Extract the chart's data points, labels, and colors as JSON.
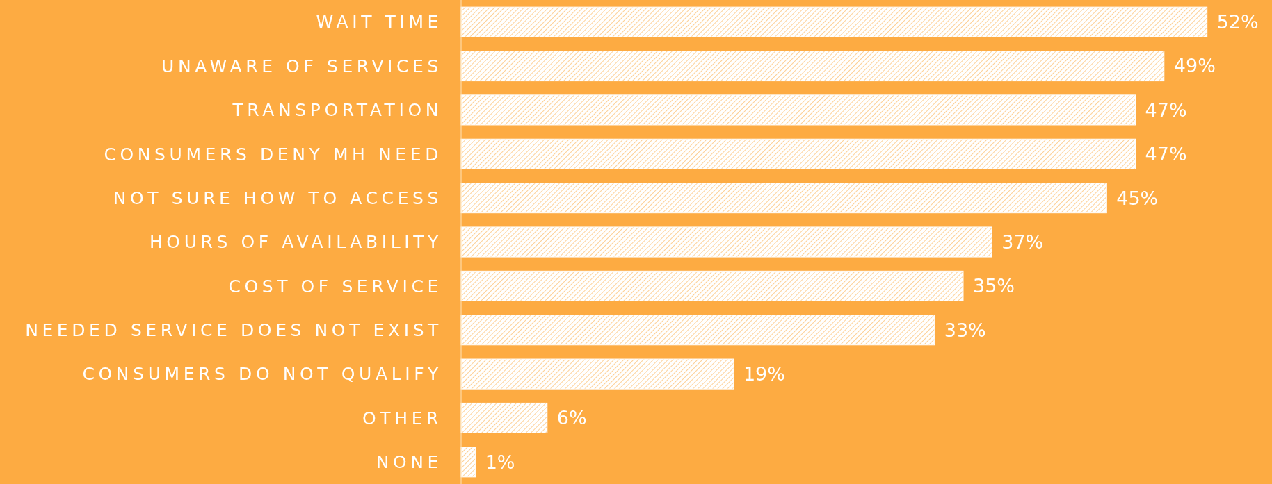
{
  "chart_data": {
    "type": "bar",
    "orientation": "horizontal",
    "categories": [
      "WAIT TIME",
      "UNAWARE OF SERVICES",
      "TRANSPORTATION",
      "CONSUMERS DENY MH NEED",
      "NOT SURE HOW TO ACCESS",
      "HOURS OF AVAILABILITY",
      "COST OF SERVICE",
      "NEEDED SERVICE DOES NOT EXIST",
      "CONSUMERS DO NOT QUALIFY",
      "OTHER",
      "NONE"
    ],
    "values": [
      52,
      49,
      47,
      47,
      45,
      37,
      35,
      33,
      19,
      6,
      1
    ],
    "value_labels": [
      "52%",
      "49%",
      "47%",
      "47%",
      "45%",
      "37%",
      "35%",
      "33%",
      "19%",
      "6%",
      "1%"
    ],
    "color": "#ffffff"
  }
}
